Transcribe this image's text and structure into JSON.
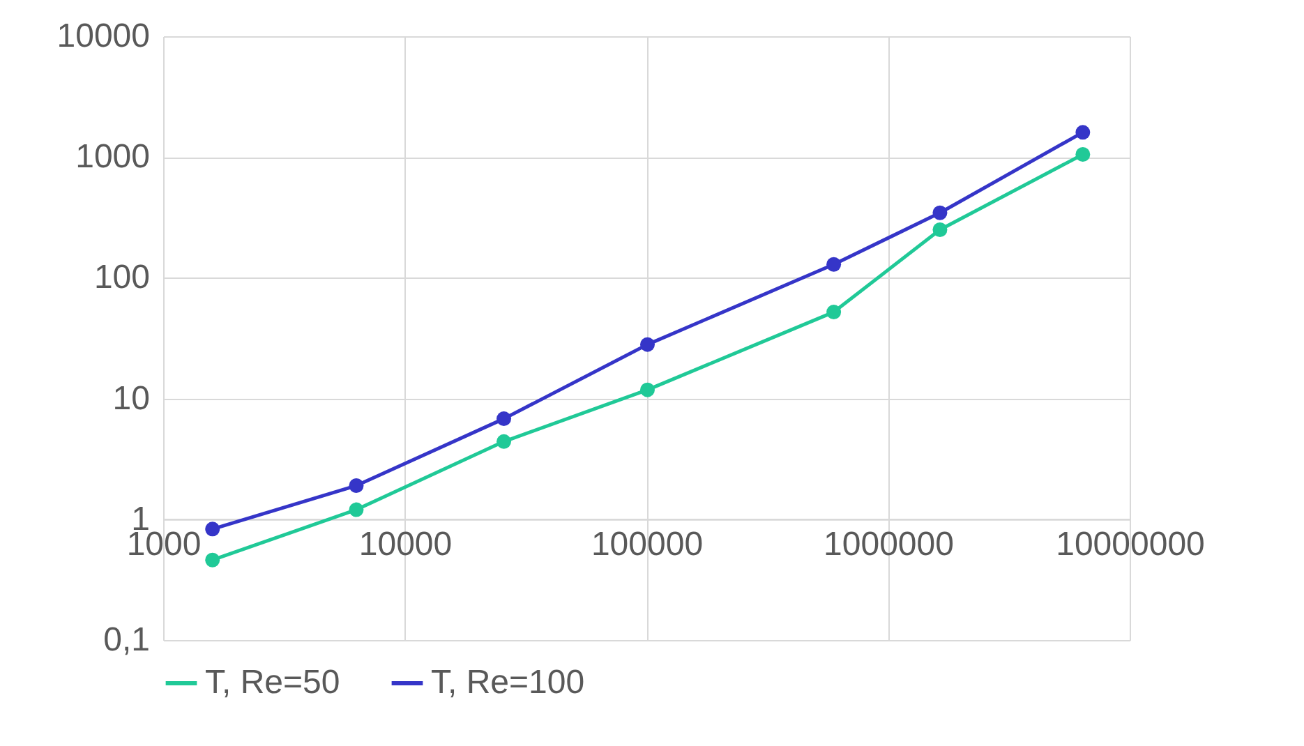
{
  "chart_data": {
    "type": "line",
    "x": [
      1600,
      6300,
      25700,
      101000,
      596000,
      1640000,
      6400000
    ],
    "series": [
      {
        "name": "T, Re=50",
        "color": "#20c997",
        "values": [
          0.46,
          1.2,
          4.4,
          11.8,
          52,
          250,
          1050
        ]
      },
      {
        "name": "T, Re=100",
        "color": "#3535c8",
        "values": [
          0.83,
          1.9,
          6.8,
          28,
          129,
          345,
          1600
        ]
      }
    ],
    "log": "xy",
    "xlim": [
      1000,
      10000000
    ],
    "ylim": [
      0.1,
      10000
    ],
    "xticks": [
      1000,
      10000,
      100000,
      1000000,
      10000000
    ],
    "yticks": [
      {
        "value": 0.1,
        "label": "0,1"
      },
      1,
      10,
      100,
      1000,
      10000
    ],
    "grid": true,
    "legend": "bottom",
    "marker": "circle",
    "line_style": "solid"
  }
}
